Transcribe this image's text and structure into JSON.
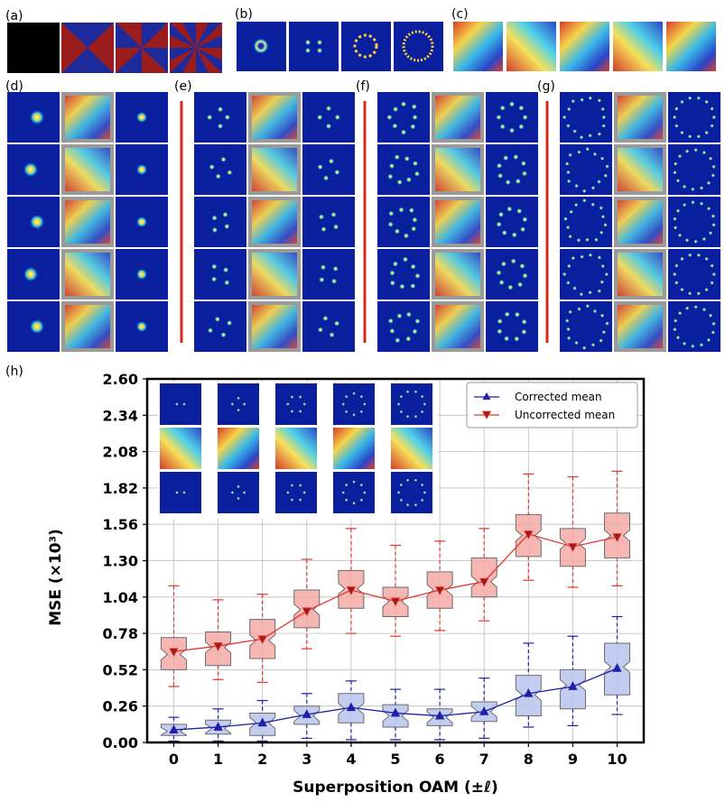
{
  "panels": {
    "a": "(a)",
    "b": "(b)",
    "c": "(c)",
    "d": "(d)",
    "e": "(e)",
    "f": "(f)",
    "g": "(g)",
    "h": "(h)"
  },
  "colors": {
    "corrected": "#1f1fa8",
    "corrected_fill": "#b8c4ec",
    "uncorrected": "#e3342c",
    "uncorrected_fill": "#f4aaa6",
    "beam_bg": "#0a1f9e",
    "phase_red": "#9b1c1c",
    "phase_blue": "#1c2a9b",
    "separator": "#d62a1f"
  },
  "chart_data": {
    "type": "box",
    "title": "",
    "xlabel": "Superposition OAM (±ℓ)",
    "ylabel": "MSE (×10³)",
    "x": [
      0,
      1,
      2,
      3,
      4,
      5,
      6,
      7,
      8,
      9,
      10
    ],
    "xlim": [
      -0.6,
      10.6
    ],
    "ylim": [
      0.0,
      2.6
    ],
    "yticks": [
      "0.00",
      "0.26",
      "0.52",
      "0.78",
      "1.04",
      "1.30",
      "1.56",
      "1.82",
      "2.08",
      "2.34",
      "2.60"
    ],
    "grid": true,
    "legend": "top-right",
    "series": [
      {
        "name": "Corrected mean",
        "marker": "triangle-up",
        "mean": [
          0.09,
          0.11,
          0.14,
          0.2,
          0.25,
          0.21,
          0.19,
          0.22,
          0.35,
          0.4,
          0.53
        ],
        "q1": [
          0.05,
          0.06,
          0.05,
          0.13,
          0.14,
          0.11,
          0.12,
          0.15,
          0.19,
          0.24,
          0.34
        ],
        "median": [
          0.08,
          0.1,
          0.14,
          0.19,
          0.24,
          0.19,
          0.18,
          0.22,
          0.34,
          0.41,
          0.54
        ],
        "q3": [
          0.13,
          0.16,
          0.21,
          0.26,
          0.35,
          0.27,
          0.24,
          0.29,
          0.48,
          0.52,
          0.71
        ],
        "whisker_low": [
          0.01,
          0.01,
          0.01,
          0.03,
          0.02,
          0.02,
          0.02,
          0.03,
          0.11,
          0.12,
          0.2
        ],
        "whisker_high": [
          0.18,
          0.24,
          0.3,
          0.35,
          0.44,
          0.38,
          0.38,
          0.46,
          0.71,
          0.76,
          0.9
        ]
      },
      {
        "name": "Uncorrected mean",
        "marker": "triangle-down",
        "mean": [
          0.65,
          0.69,
          0.74,
          0.94,
          1.09,
          1.01,
          1.09,
          1.15,
          1.49,
          1.4,
          1.47
        ],
        "q1": [
          0.52,
          0.55,
          0.6,
          0.82,
          0.96,
          0.9,
          0.96,
          1.04,
          1.33,
          1.26,
          1.32
        ],
        "median": [
          0.63,
          0.68,
          0.73,
          0.95,
          1.1,
          1.01,
          1.09,
          1.15,
          1.48,
          1.42,
          1.48
        ],
        "q3": [
          0.75,
          0.79,
          0.88,
          1.09,
          1.23,
          1.11,
          1.22,
          1.32,
          1.63,
          1.53,
          1.64
        ],
        "whisker_low": [
          0.4,
          0.45,
          0.43,
          0.67,
          0.78,
          0.76,
          0.8,
          0.87,
          1.16,
          1.11,
          1.12
        ],
        "whisker_high": [
          1.12,
          1.02,
          1.06,
          1.31,
          1.53,
          1.41,
          1.44,
          1.53,
          1.92,
          1.9,
          1.94
        ]
      }
    ]
  }
}
